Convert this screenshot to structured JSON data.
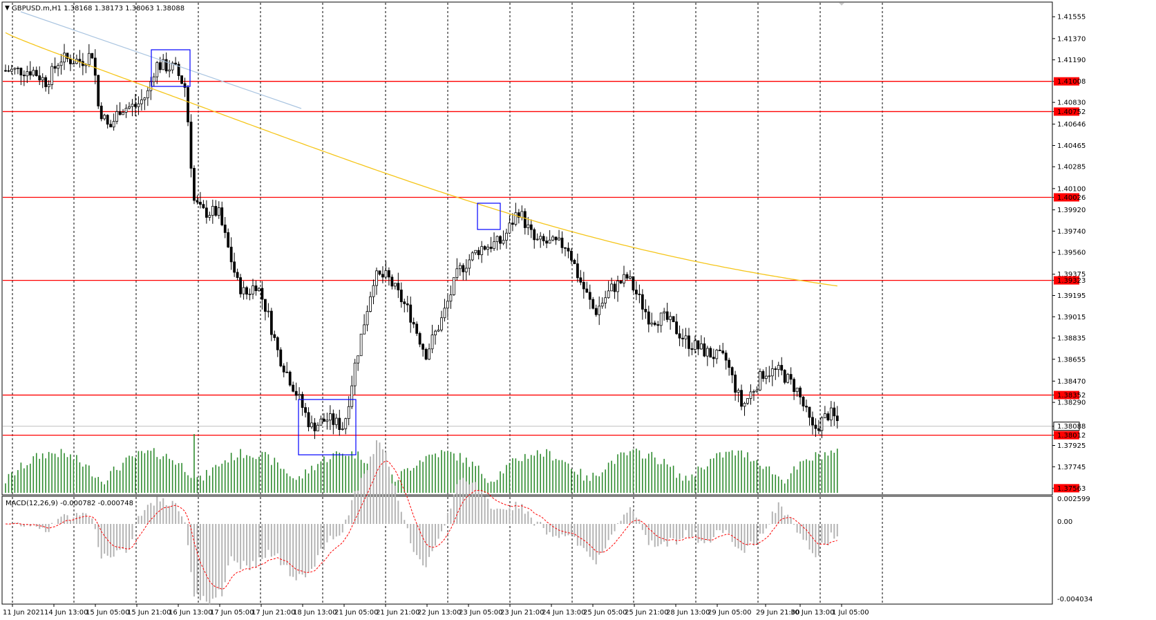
{
  "header": {
    "menu_arrow_icon": "triangle-down-icon",
    "symbol_info": "GBPUSD.m,H1  1.38168 1.38173 1.38063 1.38088"
  },
  "macd": {
    "label": "MACD(12,26,9) -0.000782 -0.000748",
    "axis_labels": [
      "0.002599",
      "0.00",
      "-0.004034"
    ]
  },
  "price_axis": {
    "labels": [
      "1.41555",
      "1.41370",
      "1.41190",
      "1.41008",
      "1.40830",
      "1.40752",
      "1.40646",
      "1.40465",
      "1.40285",
      "1.40100",
      "1.40026",
      "1.39920",
      "1.39740",
      "1.39560",
      "1.39375",
      "1.39323",
      "1.39195",
      "1.39015",
      "1.38835",
      "1.38655",
      "1.38470",
      "1.38352",
      "1.38290",
      "1.38088",
      "1.38012",
      "1.37925",
      "1.37745",
      "1.37563"
    ],
    "tag_labels": [
      "1.41008",
      "1.40752",
      "1.40026",
      "1.39323",
      "1.38352",
      "1.38012",
      "1.37563"
    ],
    "current_price": "1.38088"
  },
  "time_axis": {
    "labels": [
      "11 Jun 2021",
      "14 Jun 13:00",
      "15 Jun 05:00",
      "15 Jun 21:00",
      "16 Jun 13:00",
      "17 Jun 05:00",
      "17 Jun 21:00",
      "18 Jun 13:00",
      "21 Jun 05:00",
      "21 Jun 21:00",
      "22 Jun 13:00",
      "23 Jun 05:00",
      "23 Jun 21:00",
      "24 Jun 13:00",
      "25 Jun 05:00",
      "25 Jun 21:00",
      "28 Jun 13:00",
      "29 Jun 05:00",
      "29 Jun 21:00",
      "30 Jun 13:00",
      "1 Jul 05:00"
    ]
  },
  "chart_data": {
    "type": "candlestick",
    "symbol": "GBPUSD.m",
    "timeframe": "H1",
    "ylim": [
      1.3753,
      1.4165
    ],
    "bars": 270,
    "horizontal_levels": [
      1.41008,
      1.40752,
      1.40026,
      1.39323,
      1.38352,
      1.38012
    ],
    "current_price": 1.38088,
    "colors": {
      "level": "#ff0000",
      "ma": "#f5c518",
      "trendline": "#a9c4e0",
      "volume": "#2e8b2e",
      "macd_hist": "#b4b4b4",
      "macd_signal": "#ff0000",
      "box": "#0000ff"
    }
  }
}
